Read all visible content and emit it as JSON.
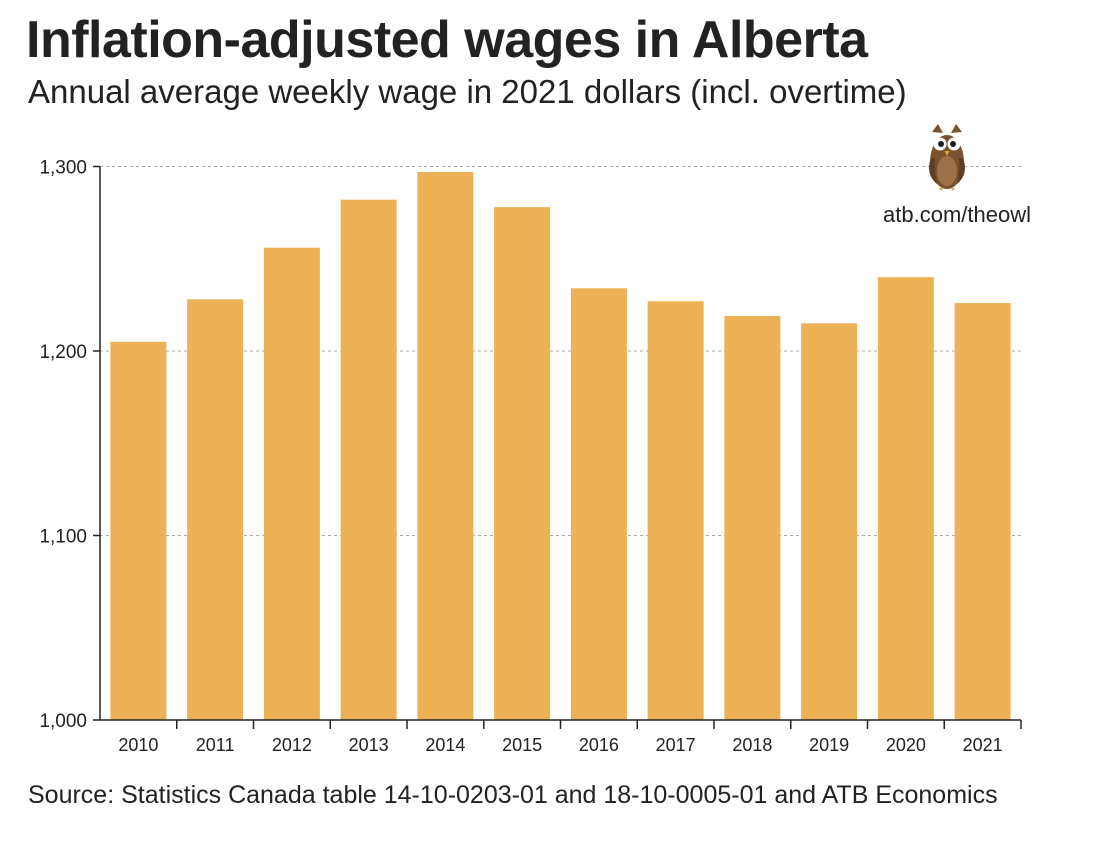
{
  "header": {
    "title": "Inflation-adjusted wages in Alberta",
    "subtitle": "Annual average weekly wage in 2021 dollars (incl. overtime)"
  },
  "footer": {
    "source": "Source: Statistics Canada table 14-10-0203-01 and 18-10-0005-01 and ATB Economics"
  },
  "branding": {
    "url": "atb.com/theowl",
    "logo_icon": "owl-icon"
  },
  "colors": {
    "bar": "#EEB256",
    "grid": "#AAAAAA",
    "axis": "#222222",
    "text": "#222222",
    "owl_body": "#7A5230",
    "owl_belly": "#9C7048"
  },
  "chart_data": {
    "type": "bar",
    "title": "Inflation-adjusted wages in Alberta",
    "subtitle": "Annual average weekly wage in 2021 dollars (incl. overtime)",
    "xlabel": "",
    "ylabel": "",
    "categories": [
      "2010",
      "2011",
      "2012",
      "2013",
      "2014",
      "2015",
      "2016",
      "2017",
      "2018",
      "2019",
      "2020",
      "2021"
    ],
    "values": [
      1205,
      1228,
      1256,
      1282,
      1297,
      1278,
      1234,
      1227,
      1219,
      1215,
      1240,
      1226
    ],
    "ylim": [
      1000,
      1300
    ],
    "yticks": [
      1000,
      1100,
      1200,
      1300
    ],
    "ytick_labels": [
      "1,000",
      "1,100",
      "1,200",
      "1,300"
    ],
    "grid": true,
    "legend": "none"
  }
}
